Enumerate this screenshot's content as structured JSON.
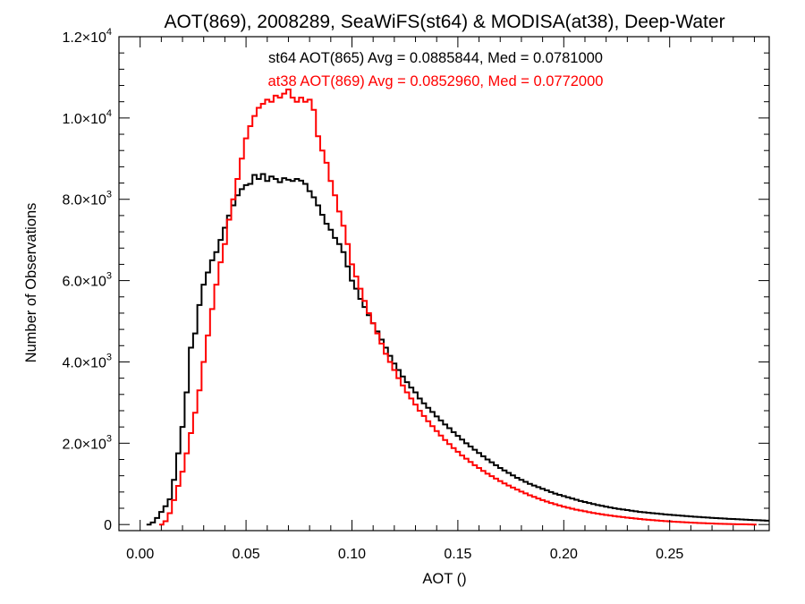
{
  "chart_data": {
    "type": "line",
    "style": "step-histogram",
    "title": "AOT(869), 2008289, SeaWiFS(st64) & MODISA(at38), Deep-Water",
    "xlabel": "AOT ()",
    "ylabel": "Number of Observations",
    "xlim": [
      -0.01,
      0.297
    ],
    "ylim": [
      -150,
      12000
    ],
    "x_ticks": [
      0.0,
      0.05,
      0.1,
      0.15,
      0.2,
      0.25
    ],
    "x_tick_labels": [
      "0.00",
      "0.05",
      "0.10",
      "0.15",
      "0.20",
      "0.25"
    ],
    "y_ticks": [
      0,
      2000,
      4000,
      6000,
      8000,
      10000,
      12000
    ],
    "y_tick_labels": [
      {
        "mantissa": "0",
        "exp": ""
      },
      {
        "mantissa": "2.0×10",
        "exp": "3"
      },
      {
        "mantissa": "4.0×10",
        "exp": "3"
      },
      {
        "mantissa": "6.0×10",
        "exp": "3"
      },
      {
        "mantissa": "8.0×10",
        "exp": "3"
      },
      {
        "mantissa": "1.0×10",
        "exp": "4"
      },
      {
        "mantissa": "1.2×10",
        "exp": "4"
      }
    ],
    "grid": false,
    "legend": "top-center",
    "annotations": [
      {
        "text": "st64 AOT(865) Avg = 0.0885844, Med = 0.0781000",
        "color": "#000000"
      },
      {
        "text": "at38 AOT(869) Avg = 0.0852960, Med = 0.0772000",
        "color": "#ff0000"
      }
    ],
    "series": [
      {
        "color": "#000000",
        "points": [
          [
            0.004,
            0
          ],
          [
            0.006,
            50
          ],
          [
            0.008,
            160
          ],
          [
            0.01,
            310
          ],
          [
            0.012,
            450
          ],
          [
            0.014,
            620
          ],
          [
            0.016,
            1100
          ],
          [
            0.018,
            1750
          ],
          [
            0.02,
            2400
          ],
          [
            0.022,
            3250
          ],
          [
            0.024,
            4350
          ],
          [
            0.026,
            4700
          ],
          [
            0.028,
            5400
          ],
          [
            0.03,
            5900
          ],
          [
            0.032,
            6200
          ],
          [
            0.034,
            6500
          ],
          [
            0.036,
            6700
          ],
          [
            0.038,
            7000
          ],
          [
            0.04,
            7300
          ],
          [
            0.042,
            7600
          ],
          [
            0.044,
            7850
          ],
          [
            0.046,
            8100
          ],
          [
            0.048,
            8250
          ],
          [
            0.05,
            8350
          ],
          [
            0.052,
            8380
          ],
          [
            0.054,
            8600
          ],
          [
            0.056,
            8500
          ],
          [
            0.058,
            8620
          ],
          [
            0.06,
            8450
          ],
          [
            0.062,
            8560
          ],
          [
            0.064,
            8500
          ],
          [
            0.066,
            8420
          ],
          [
            0.068,
            8520
          ],
          [
            0.07,
            8480
          ],
          [
            0.072,
            8450
          ],
          [
            0.074,
            8500
          ],
          [
            0.076,
            8460
          ],
          [
            0.078,
            8380
          ],
          [
            0.08,
            8200
          ],
          [
            0.082,
            8050
          ],
          [
            0.084,
            7850
          ],
          [
            0.086,
            7620
          ],
          [
            0.088,
            7400
          ],
          [
            0.09,
            7250
          ],
          [
            0.092,
            7050
          ],
          [
            0.094,
            6900
          ],
          [
            0.096,
            6700
          ],
          [
            0.098,
            6350
          ],
          [
            0.1,
            6000
          ],
          [
            0.102,
            5800
          ],
          [
            0.104,
            5550
          ],
          [
            0.106,
            5350
          ],
          [
            0.108,
            5150
          ],
          [
            0.11,
            4950
          ],
          [
            0.112,
            4750
          ],
          [
            0.114,
            4550
          ],
          [
            0.116,
            4350
          ],
          [
            0.118,
            4150
          ],
          [
            0.12,
            3960
          ],
          [
            0.122,
            3800
          ],
          [
            0.124,
            3640
          ],
          [
            0.126,
            3500
          ],
          [
            0.128,
            3370
          ],
          [
            0.13,
            3250
          ],
          [
            0.132,
            3100
          ],
          [
            0.134,
            2980
          ],
          [
            0.136,
            2870
          ],
          [
            0.138,
            2770
          ],
          [
            0.14,
            2660
          ],
          [
            0.142,
            2560
          ],
          [
            0.144,
            2460
          ],
          [
            0.146,
            2370
          ],
          [
            0.148,
            2270
          ],
          [
            0.15,
            2180
          ],
          [
            0.152,
            2090
          ],
          [
            0.154,
            2000
          ],
          [
            0.156,
            1920
          ],
          [
            0.158,
            1840
          ],
          [
            0.16,
            1760
          ],
          [
            0.162,
            1680
          ],
          [
            0.164,
            1600
          ],
          [
            0.166,
            1530
          ],
          [
            0.168,
            1460
          ],
          [
            0.17,
            1390
          ],
          [
            0.172,
            1330
          ],
          [
            0.174,
            1270
          ],
          [
            0.176,
            1210
          ],
          [
            0.178,
            1150
          ],
          [
            0.18,
            1100
          ],
          [
            0.182,
            1050
          ],
          [
            0.184,
            1000
          ],
          [
            0.186,
            960
          ],
          [
            0.188,
            920
          ],
          [
            0.19,
            880
          ],
          [
            0.192,
            840
          ],
          [
            0.194,
            800
          ],
          [
            0.196,
            760
          ],
          [
            0.198,
            730
          ],
          [
            0.2,
            700
          ],
          [
            0.202,
            670
          ],
          [
            0.204,
            640
          ],
          [
            0.206,
            610
          ],
          [
            0.208,
            580
          ],
          [
            0.21,
            555
          ],
          [
            0.212,
            530
          ],
          [
            0.214,
            505
          ],
          [
            0.216,
            480
          ],
          [
            0.218,
            460
          ],
          [
            0.22,
            440
          ],
          [
            0.222,
            420
          ],
          [
            0.224,
            400
          ],
          [
            0.226,
            385
          ],
          [
            0.228,
            370
          ],
          [
            0.23,
            355
          ],
          [
            0.232,
            340
          ],
          [
            0.234,
            325
          ],
          [
            0.236,
            310
          ],
          [
            0.238,
            300
          ],
          [
            0.24,
            290
          ],
          [
            0.242,
            280
          ],
          [
            0.244,
            270
          ],
          [
            0.246,
            260
          ],
          [
            0.248,
            250
          ],
          [
            0.25,
            240
          ],
          [
            0.252,
            232
          ],
          [
            0.254,
            224
          ],
          [
            0.256,
            216
          ],
          [
            0.258,
            208
          ],
          [
            0.26,
            200
          ],
          [
            0.262,
            192
          ],
          [
            0.264,
            185
          ],
          [
            0.266,
            178
          ],
          [
            0.268,
            171
          ],
          [
            0.27,
            164
          ],
          [
            0.272,
            158
          ],
          [
            0.274,
            152
          ],
          [
            0.276,
            146
          ],
          [
            0.278,
            140
          ],
          [
            0.28,
            135
          ],
          [
            0.282,
            130
          ],
          [
            0.284,
            125
          ],
          [
            0.286,
            120
          ],
          [
            0.288,
            115
          ],
          [
            0.29,
            110
          ],
          [
            0.292,
            105
          ],
          [
            0.294,
            100
          ],
          [
            0.296,
            95
          ]
        ]
      },
      {
        "color": "#ff0000",
        "points": [
          [
            0.01,
            0
          ],
          [
            0.012,
            80
          ],
          [
            0.014,
            280
          ],
          [
            0.016,
            600
          ],
          [
            0.018,
            950
          ],
          [
            0.02,
            1300
          ],
          [
            0.022,
            1750
          ],
          [
            0.024,
            2250
          ],
          [
            0.026,
            2750
          ],
          [
            0.028,
            3300
          ],
          [
            0.03,
            4000
          ],
          [
            0.032,
            4650
          ],
          [
            0.034,
            5300
          ],
          [
            0.036,
            5900
          ],
          [
            0.038,
            6450
          ],
          [
            0.04,
            6900
          ],
          [
            0.042,
            7500
          ],
          [
            0.044,
            8000
          ],
          [
            0.046,
            8500
          ],
          [
            0.048,
            9000
          ],
          [
            0.05,
            9500
          ],
          [
            0.052,
            9800
          ],
          [
            0.054,
            10050
          ],
          [
            0.056,
            10250
          ],
          [
            0.058,
            10350
          ],
          [
            0.06,
            10450
          ],
          [
            0.062,
            10400
          ],
          [
            0.064,
            10550
          ],
          [
            0.066,
            10500
          ],
          [
            0.068,
            10600
          ],
          [
            0.07,
            10700
          ],
          [
            0.072,
            10500
          ],
          [
            0.074,
            10400
          ],
          [
            0.076,
            10500
          ],
          [
            0.078,
            10400
          ],
          [
            0.08,
            10450
          ],
          [
            0.082,
            10200
          ],
          [
            0.084,
            9550
          ],
          [
            0.086,
            9200
          ],
          [
            0.088,
            8900
          ],
          [
            0.09,
            8450
          ],
          [
            0.092,
            8100
          ],
          [
            0.094,
            7700
          ],
          [
            0.096,
            7350
          ],
          [
            0.098,
            6900
          ],
          [
            0.1,
            6400
          ],
          [
            0.102,
            6100
          ],
          [
            0.104,
            5800
          ],
          [
            0.106,
            5500
          ],
          [
            0.108,
            5200
          ],
          [
            0.11,
            4950
          ],
          [
            0.112,
            4700
          ],
          [
            0.114,
            4450
          ],
          [
            0.116,
            4200
          ],
          [
            0.118,
            4000
          ],
          [
            0.12,
            3800
          ],
          [
            0.122,
            3600
          ],
          [
            0.124,
            3420
          ],
          [
            0.126,
            3250
          ],
          [
            0.128,
            3100
          ],
          [
            0.13,
            2950
          ],
          [
            0.132,
            2800
          ],
          [
            0.134,
            2670
          ],
          [
            0.136,
            2540
          ],
          [
            0.138,
            2420
          ],
          [
            0.14,
            2300
          ],
          [
            0.142,
            2190
          ],
          [
            0.144,
            2080
          ],
          [
            0.146,
            1980
          ],
          [
            0.148,
            1880
          ],
          [
            0.15,
            1790
          ],
          [
            0.152,
            1700
          ],
          [
            0.154,
            1620
          ],
          [
            0.156,
            1540
          ],
          [
            0.158,
            1460
          ],
          [
            0.16,
            1390
          ],
          [
            0.162,
            1320
          ],
          [
            0.164,
            1250
          ],
          [
            0.166,
            1190
          ],
          [
            0.168,
            1130
          ],
          [
            0.17,
            1070
          ],
          [
            0.172,
            1010
          ],
          [
            0.174,
            960
          ],
          [
            0.176,
            910
          ],
          [
            0.178,
            860
          ],
          [
            0.18,
            810
          ],
          [
            0.182,
            765
          ],
          [
            0.184,
            720
          ],
          [
            0.186,
            680
          ],
          [
            0.188,
            640
          ],
          [
            0.19,
            600
          ],
          [
            0.192,
            565
          ],
          [
            0.194,
            530
          ],
          [
            0.196,
            500
          ],
          [
            0.198,
            470
          ],
          [
            0.2,
            440
          ],
          [
            0.202,
            415
          ],
          [
            0.204,
            390
          ],
          [
            0.206,
            365
          ],
          [
            0.208,
            345
          ],
          [
            0.21,
            325
          ],
          [
            0.212,
            305
          ],
          [
            0.214,
            285
          ],
          [
            0.216,
            268
          ],
          [
            0.218,
            252
          ],
          [
            0.22,
            236
          ],
          [
            0.222,
            222
          ],
          [
            0.224,
            208
          ],
          [
            0.226,
            195
          ],
          [
            0.228,
            182
          ],
          [
            0.23,
            170
          ],
          [
            0.232,
            158
          ],
          [
            0.234,
            147
          ],
          [
            0.236,
            136
          ],
          [
            0.238,
            126
          ],
          [
            0.24,
            117
          ],
          [
            0.242,
            108
          ],
          [
            0.244,
            100
          ],
          [
            0.246,
            92
          ],
          [
            0.248,
            85
          ],
          [
            0.25,
            78
          ],
          [
            0.252,
            71
          ],
          [
            0.254,
            65
          ],
          [
            0.256,
            59
          ],
          [
            0.258,
            53
          ],
          [
            0.26,
            48
          ],
          [
            0.262,
            43
          ],
          [
            0.264,
            38
          ],
          [
            0.266,
            34
          ],
          [
            0.268,
            30
          ],
          [
            0.27,
            26
          ],
          [
            0.272,
            22
          ],
          [
            0.274,
            19
          ],
          [
            0.276,
            16
          ],
          [
            0.278,
            13
          ],
          [
            0.28,
            10
          ],
          [
            0.282,
            8
          ],
          [
            0.284,
            6
          ],
          [
            0.286,
            4
          ],
          [
            0.288,
            2
          ],
          [
            0.29,
            0
          ]
        ]
      }
    ]
  }
}
